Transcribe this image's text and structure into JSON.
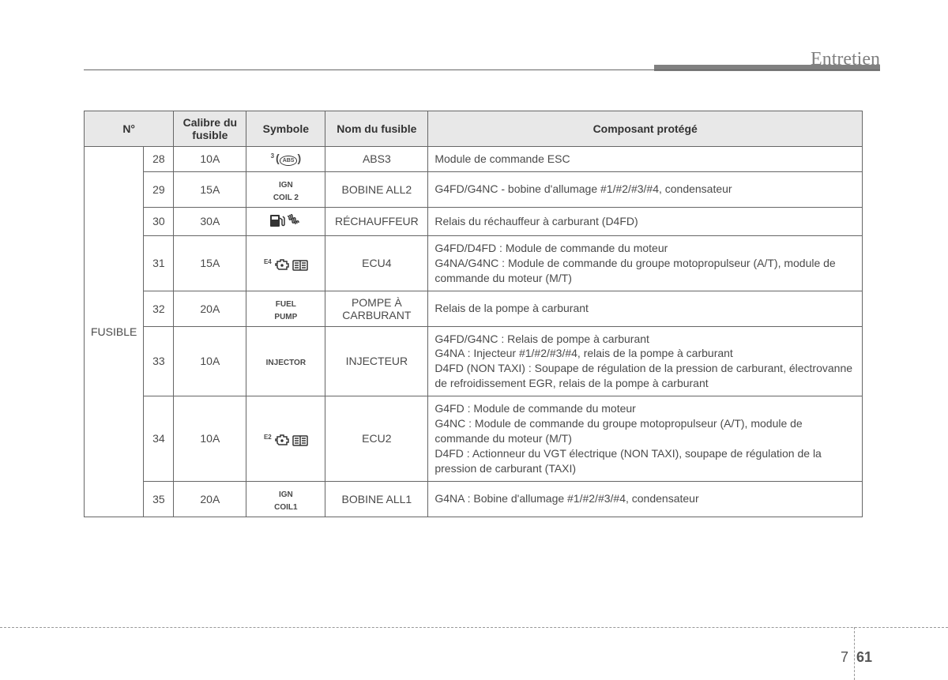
{
  "header": {
    "section_title": "Entretien"
  },
  "table": {
    "columns": [
      "N°",
      "Calibre du fusible",
      "Symbole",
      "Nom du fusible",
      "Composant protégé"
    ],
    "row_label": "FUSIBLE",
    "rows": [
      {
        "num": "28",
        "cal": "10A",
        "sym_type": "abs",
        "sym_sup": "3",
        "sym_text": "ABS",
        "nom": "ABS3",
        "comp": "Module de commande ESC"
      },
      {
        "num": "29",
        "cal": "15A",
        "sym_type": "text",
        "sym_text": "IGN\nCOIL 2",
        "nom": "BOBINE ALL2",
        "comp": "G4FD/G4NC - bobine d'allumage #1/#2/#3/#4, condensateur"
      },
      {
        "num": "30",
        "cal": "30A",
        "sym_type": "fuel",
        "nom": "RÉCHAUFFEUR",
        "comp": "Relais du réchauffeur à carburant (D4FD)"
      },
      {
        "num": "31",
        "cal": "15A",
        "sym_type": "ecu",
        "sym_sup": "E4",
        "nom": "ECU4",
        "comp": "G4FD/D4FD  : Module de commande du moteur\nG4NA/G4NC  : Module de commande du groupe motopropulseur (A/T), module de commande du moteur (M/T)"
      },
      {
        "num": "32",
        "cal": "20A",
        "sym_type": "text",
        "sym_text": "FUEL\nPUMP",
        "nom": "POMPE À CARBURANT",
        "comp": "Relais de la pompe à carburant"
      },
      {
        "num": "33",
        "cal": "10A",
        "sym_type": "text",
        "sym_text": "INJECTOR",
        "nom": "INJECTEUR",
        "comp": "G4FD/G4NC  : Relais de pompe à carburant\nG4NA : Injecteur #1/#2/#3/#4, relais de la pompe à carburant\nD4FD (NON TAXI)  : Soupape de régulation de la pression de carburant, électrovanne de refroidissement EGR, relais de la pompe à carburant"
      },
      {
        "num": "34",
        "cal": "10A",
        "sym_type": "ecu",
        "sym_sup": "E2",
        "nom": "ECU2",
        "comp": "G4FD  : Module de commande du moteur\nG4NC  : Module de commande du groupe motopropulseur (A/T), module de commande du moteur (M/T)\nD4FD  : Actionneur du VGT électrique (NON TAXI), soupape de régulation de la pression de carburant (TAXI)"
      },
      {
        "num": "35",
        "cal": "20A",
        "sym_type": "text",
        "sym_text": "IGN\nCOIL1",
        "nom": "BOBINE ALL1",
        "comp": "G4NA  : Bobine d'allumage #1/#2/#3/#4, condensateur"
      }
    ]
  },
  "footer": {
    "page_left": "7",
    "page_right": "61"
  },
  "style": {
    "header_text_color": "#808080",
    "header_font_size": 24,
    "th_bg": "#e8e8e8",
    "border_color": "#666666",
    "body_font_size": 14,
    "sym_font_size": 10
  }
}
